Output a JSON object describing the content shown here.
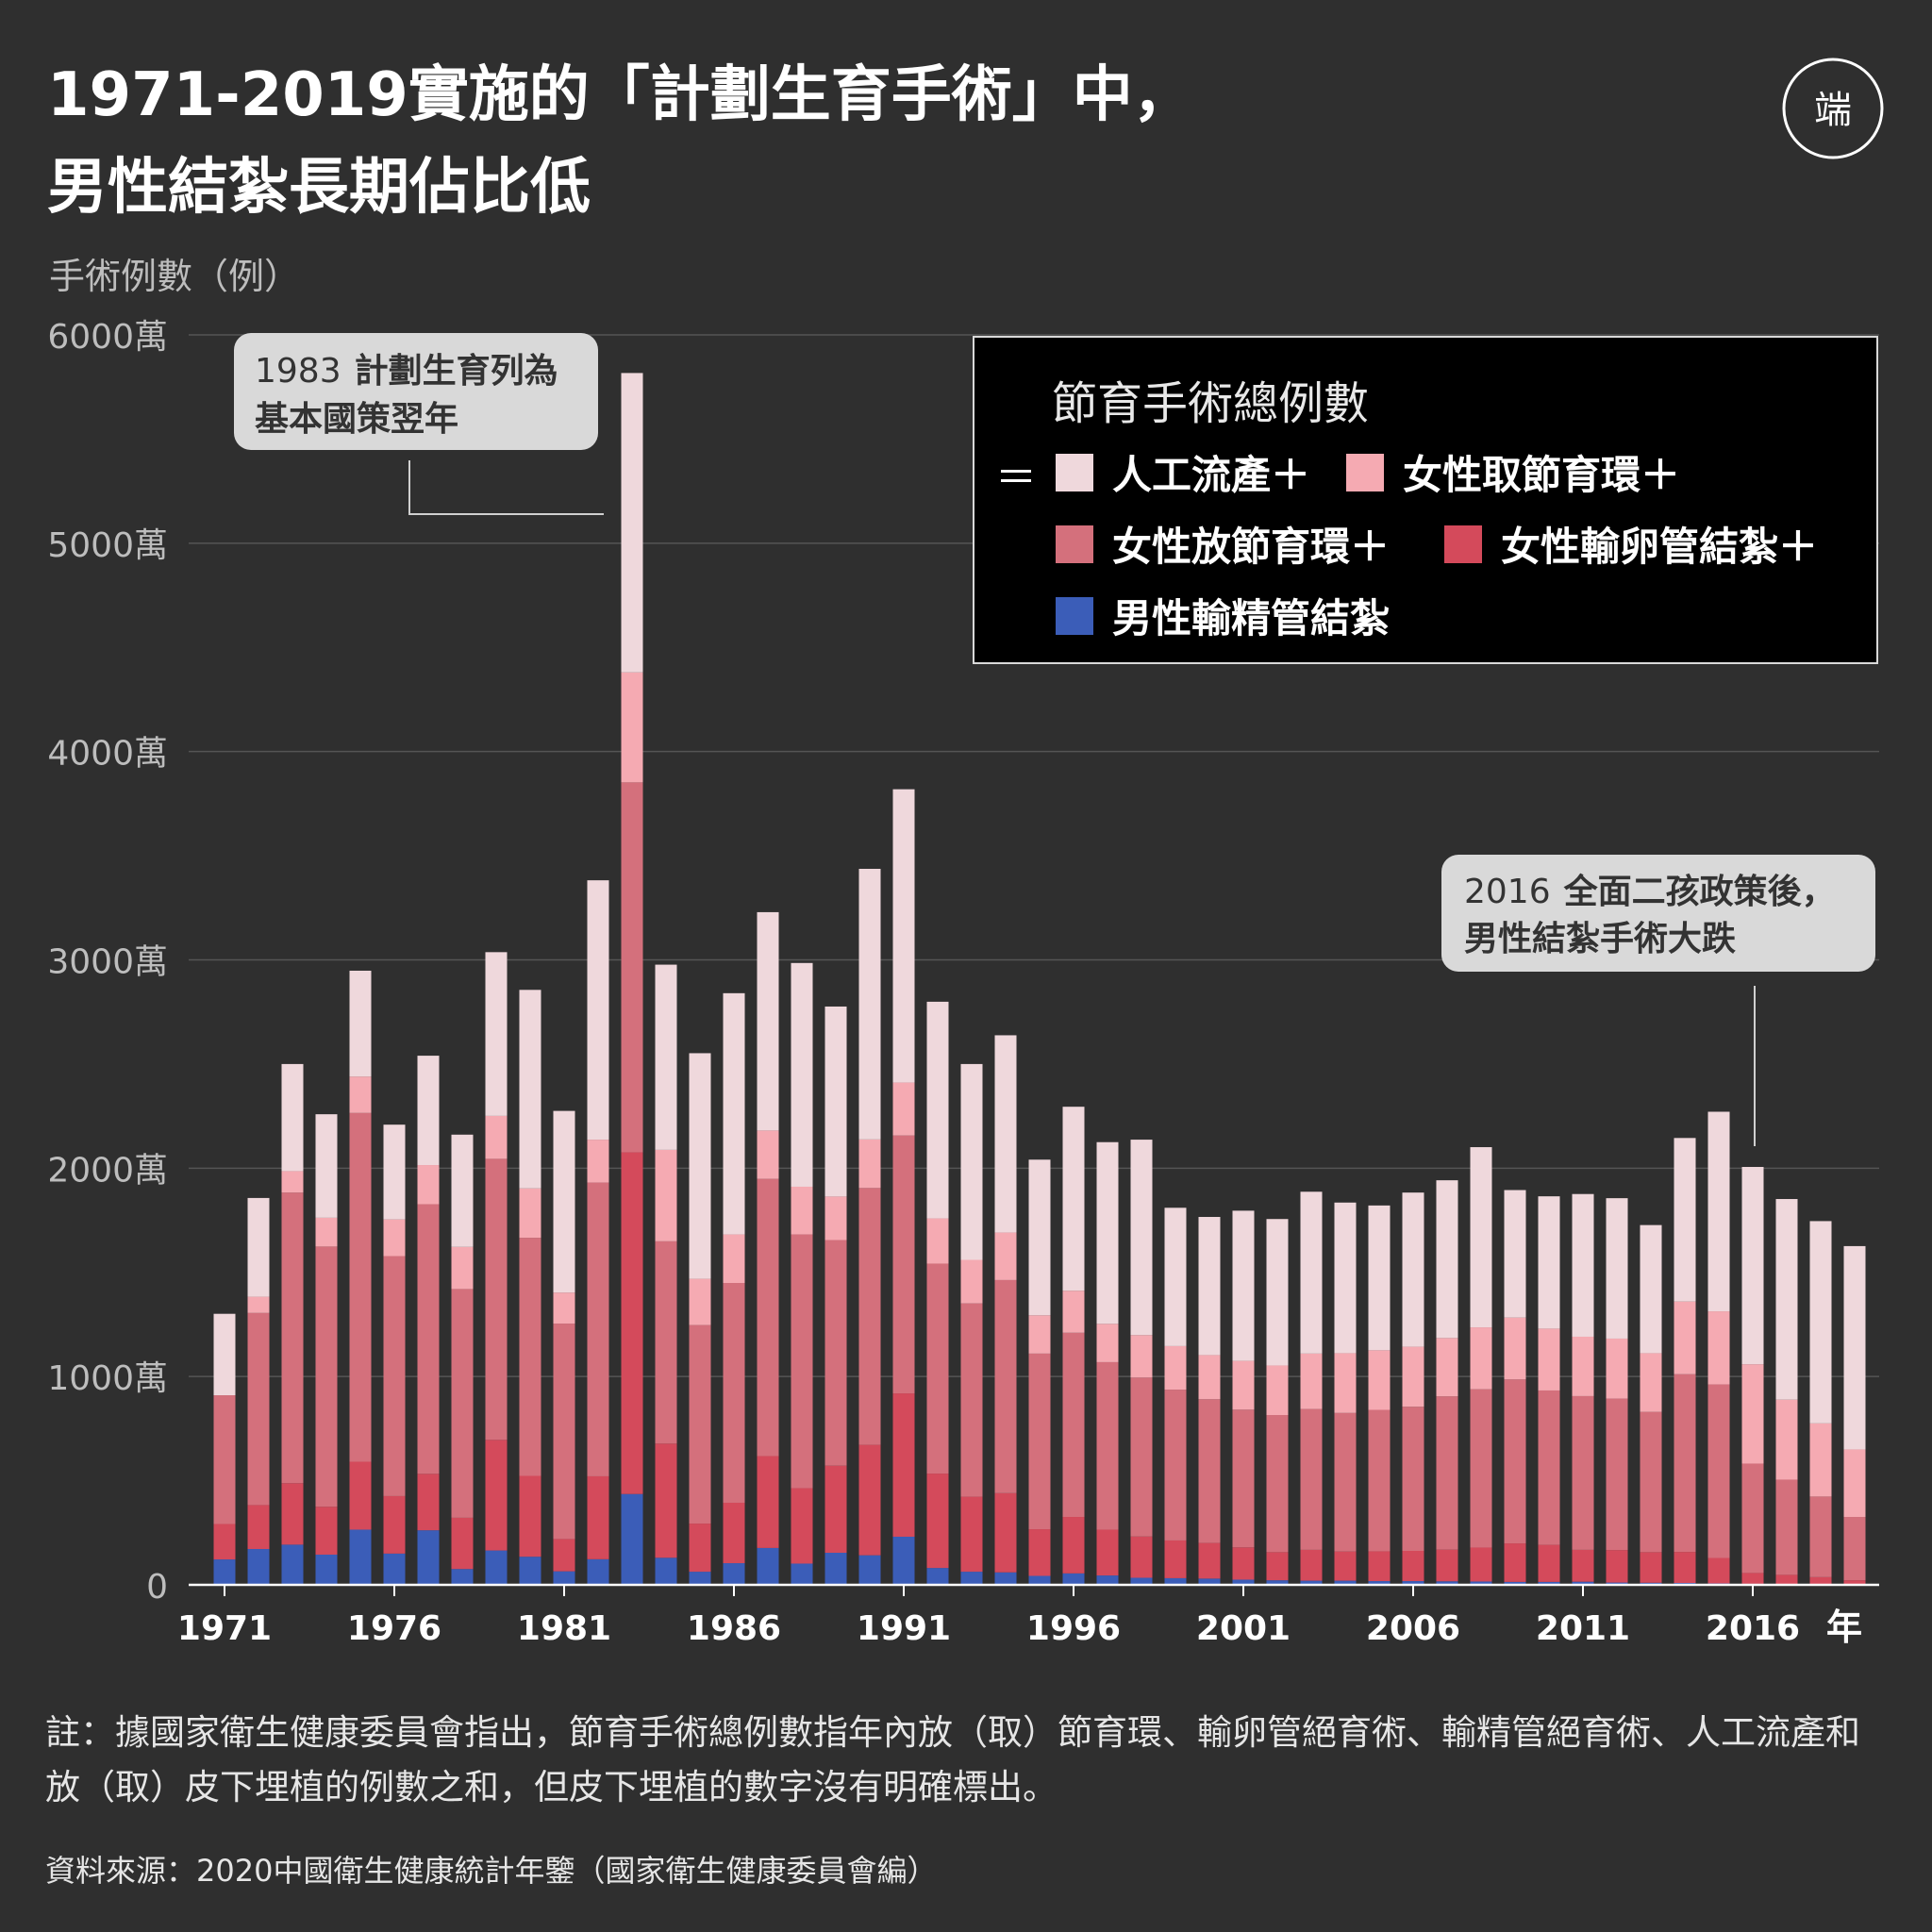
{
  "title": {
    "line1": "1971-2019實施的「計劃生育手術」中，",
    "line2": "男性結紮長期佔比低"
  },
  "logo": {
    "text": "端",
    "icon": "initium-logo-icon"
  },
  "colors": {
    "background": "#2f2f2f",
    "abortion": "#efd8dc",
    "iud_removal": "#f5aab2",
    "iud_insertion": "#d4707c",
    "tubal_ligation": "#d44a5b",
    "vasectomy": "#3b5db8"
  },
  "chart_data": {
    "type": "bar",
    "stacked": true,
    "ylabel": "手術例數（例）",
    "xlabel": "年",
    "ylim": [
      0,
      60000000
    ],
    "yticks": [
      0,
      10000000,
      20000000,
      30000000,
      40000000,
      50000000,
      60000000
    ],
    "ytick_labels": [
      "0",
      "1000萬",
      "2000萬",
      "3000萬",
      "4000萬",
      "5000萬",
      "6000萬"
    ],
    "xtick_labels": [
      "1971",
      "1976",
      "1981",
      "1986",
      "1991",
      "1996",
      "2001",
      "2006",
      "2011",
      "2016"
    ],
    "grid": true,
    "legend_position": "top-right",
    "legend_title": "節育手術總例數",
    "legend_eq": "＝",
    "categories": [
      "1971",
      "1972",
      "1973",
      "1974",
      "1975",
      "1976",
      "1977",
      "1978",
      "1979",
      "1980",
      "1981",
      "1982",
      "1983",
      "1984",
      "1985",
      "1986",
      "1987",
      "1988",
      "1989",
      "1990",
      "1991",
      "1992",
      "1993",
      "1994",
      "1995",
      "1996",
      "1997",
      "1998",
      "1999",
      "2000",
      "2001",
      "2002",
      "2003",
      "2004",
      "2005",
      "2006",
      "2007",
      "2008",
      "2009",
      "2010",
      "2011",
      "2012",
      "2013",
      "2014",
      "2015",
      "2016",
      "2017",
      "2018",
      "2019"
    ],
    "series": [
      {
        "key": "vasectomy",
        "name": "男性輸精管結紮",
        "legend_label": "男性輸精管結紮",
        "values": [
          1220000,
          1720000,
          1930000,
          1450000,
          2650000,
          1500000,
          2620000,
          760000,
          1650000,
          1350000,
          650000,
          1230000,
          4360000,
          1300000,
          630000,
          1040000,
          1770000,
          1020000,
          1540000,
          1420000,
          2310000,
          810000,
          630000,
          600000,
          430000,
          550000,
          450000,
          340000,
          320000,
          300000,
          250000,
          220000,
          200000,
          200000,
          180000,
          180000,
          170000,
          160000,
          140000,
          140000,
          150000,
          110000,
          100000,
          90000,
          70000,
          50000,
          30000,
          20000,
          20000
        ]
      },
      {
        "key": "tubal_ligation",
        "name": "女性輸卵管結紮",
        "legend_label": "女性輸卵管結紮＋",
        "values": [
          1700000,
          2110000,
          2950000,
          2300000,
          3260000,
          2760000,
          2710000,
          2460000,
          5310000,
          3880000,
          1550000,
          3980000,
          16400000,
          5480000,
          2310000,
          2900000,
          4410000,
          3620000,
          4180000,
          5300000,
          6880000,
          4530000,
          3600000,
          3800000,
          2240000,
          2710000,
          2200000,
          1980000,
          1810000,
          1710000,
          1550000,
          1350000,
          1480000,
          1400000,
          1430000,
          1450000,
          1520000,
          1630000,
          1850000,
          1780000,
          1530000,
          1560000,
          1470000,
          1490000,
          1220000,
          520000,
          450000,
          350000,
          200000
        ]
      },
      {
        "key": "iud_insertion",
        "name": "女性放節育環",
        "legend_label": "女性放節育環＋",
        "values": [
          6180000,
          9220000,
          13950000,
          12490000,
          16740000,
          11520000,
          12940000,
          10980000,
          13490000,
          11430000,
          10340000,
          14100000,
          17760000,
          9710000,
          9530000,
          10550000,
          13310000,
          12180000,
          10830000,
          12330000,
          12380000,
          10080000,
          9280000,
          10230000,
          8430000,
          8840000,
          8040000,
          7630000,
          7240000,
          6900000,
          6610000,
          6580000,
          6760000,
          6650000,
          6790000,
          6920000,
          7360000,
          7600000,
          7870000,
          7410000,
          7380000,
          7270000,
          6730000,
          8530000,
          8330000,
          5250000,
          4570000,
          3870000,
          3040000
        ]
      },
      {
        "key": "iud_removal",
        "name": "女性取節育環",
        "legend_label": "女性取節育環＋",
        "values": [
          0,
          780000,
          1030000,
          1380000,
          1750000,
          1760000,
          1880000,
          2020000,
          2060000,
          2370000,
          1490000,
          2060000,
          5280000,
          4390000,
          2220000,
          2330000,
          2320000,
          2290000,
          2090000,
          2330000,
          2540000,
          2170000,
          2090000,
          2280000,
          1840000,
          2020000,
          1840000,
          2040000,
          2090000,
          2120000,
          2340000,
          2380000,
          2660000,
          2870000,
          2860000,
          2880000,
          2800000,
          2970000,
          2970000,
          2970000,
          2850000,
          2880000,
          2820000,
          3490000,
          3510000,
          4770000,
          3840000,
          3510000,
          3240000
        ]
      },
      {
        "key": "abortion",
        "name": "人工流產",
        "legend_label": "人工流產＋",
        "values": [
          3910000,
          4740000,
          5140000,
          4970000,
          5080000,
          4550000,
          5250000,
          5390000,
          7860000,
          9530000,
          8720000,
          12450000,
          14370000,
          8890000,
          10830000,
          11580000,
          10480000,
          10740000,
          9120000,
          12990000,
          14080000,
          10400000,
          9400000,
          9470000,
          7470000,
          8830000,
          8720000,
          9380000,
          6640000,
          6630000,
          7210000,
          7030000,
          7770000,
          7230000,
          6950000,
          7400000,
          7570000,
          8650000,
          6120000,
          6350000,
          6850000,
          6740000,
          6150000,
          7850000,
          9580000,
          9470000,
          9630000,
          9710000,
          9760000
        ]
      }
    ],
    "totals": [
      13010000,
      18570000,
      25000000,
      22590000,
      29480000,
      22090000,
      25400000,
      21610000,
      30370000,
      28560000,
      22750000,
      33820000,
      58170000,
      29770000,
      25520000,
      28400000,
      32290000,
      29850000,
      27760000,
      34370000,
      38190000,
      27990000,
      25000000,
      26380000,
      20410000,
      22950000,
      21250000,
      21370000,
      18100000,
      17660000,
      17960000,
      17560000,
      18870000,
      18350000,
      18210000,
      18830000,
      19420000,
      21010000,
      18950000,
      18650000,
      18760000,
      18560000,
      17270000,
      21450000,
      22710000,
      20060000,
      18520000,
      17460000,
      16260000
    ],
    "annotations": [
      {
        "label_bold": "計劃生育列為",
        "year": "1983",
        "line2": "基本國策翌年"
      },
      {
        "year": "2016",
        "label_bold": "全面二孩政策後，",
        "line2": "男性結紮手術大跌"
      }
    ]
  },
  "footnote": "註：據國家衛生健康委員會指出，節育手術總例數指年內放（取）節育環、輸卵管絕育術、輸精管絕育術、人工流產和放（取）皮下埋植的例數之和，但皮下埋植的數字沒有明確標出。",
  "source": "資料來源：2020中國衛生健康統計年鑒（國家衛生健康委員會編）"
}
